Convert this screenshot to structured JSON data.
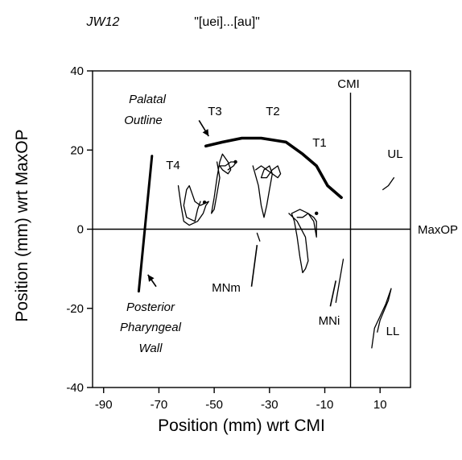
{
  "chart_data": {
    "type": "line",
    "header_left": "JW12",
    "header_right": "\"[uei]...[au]\"",
    "xlabel": "Position (mm) wrt CMI",
    "ylabel": "Position (mm) wrt MaxOP",
    "xlim": [
      -94,
      21
    ],
    "ylim": [
      -40,
      40
    ],
    "x_ticks": [
      "-90",
      "-70",
      "-50",
      "-30",
      "-10",
      "10"
    ],
    "x_tick_values": [
      -90,
      -70,
      -50,
      -30,
      -10,
      10
    ],
    "y_ticks": [
      "40",
      "20",
      "0",
      "-20",
      "-40"
    ],
    "y_tick_values": [
      40,
      20,
      0,
      -20,
      -40
    ],
    "reference_lines": {
      "vertical": {
        "label": "CMI",
        "x": 0
      },
      "horizontal": {
        "label": "MaxOP",
        "y": 0
      }
    },
    "labels": {
      "palatal": [
        "Palatal",
        "Outline"
      ],
      "pharyngeal": [
        "Posterior",
        "Pharyngeal",
        "Wall"
      ],
      "T4": "T4",
      "T3": "T3",
      "T2": "T2",
      "T1": "T1",
      "UL": "UL",
      "LL": "LL",
      "MNm": "MNm",
      "MNi": "MNi"
    },
    "series": [
      {
        "id": "palatal_outline",
        "points": [
          [
            -53,
            21
          ],
          [
            -47,
            22
          ],
          [
            -40,
            23
          ],
          [
            -33,
            23
          ],
          [
            -24,
            22
          ],
          [
            -18,
            19
          ],
          [
            -13,
            16
          ],
          [
            -9,
            11
          ],
          [
            -4,
            8
          ]
        ]
      },
      {
        "id": "pharyngeal_wall",
        "points": [
          [
            -72.5,
            18.5
          ],
          [
            -77.3,
            -15.7
          ]
        ]
      },
      {
        "id": "T4",
        "points": [
          [
            -63,
            11
          ],
          [
            -62,
            6
          ],
          [
            -61,
            2
          ],
          [
            -59,
            1
          ],
          [
            -56,
            2
          ],
          [
            -54,
            4
          ],
          [
            -53,
            6
          ],
          [
            -52,
            7
          ],
          [
            -55,
            6
          ],
          [
            -57,
            7
          ],
          [
            -58,
            9
          ],
          [
            -59,
            11
          ],
          [
            -60,
            10
          ],
          [
            -61,
            6
          ],
          [
            -60,
            3
          ],
          [
            -57,
            2
          ],
          [
            -56,
            5
          ],
          [
            -55,
            7
          ]
        ]
      },
      {
        "id": "T3",
        "points": [
          [
            -49,
            17
          ],
          [
            -48,
            13
          ],
          [
            -49,
            9
          ],
          [
            -50,
            5
          ],
          [
            -51,
            4
          ],
          [
            -50,
            8
          ],
          [
            -49,
            13
          ],
          [
            -48,
            17
          ],
          [
            -47,
            19
          ],
          [
            -45,
            17
          ],
          [
            -44,
            15
          ],
          [
            -45,
            14
          ],
          [
            -47,
            15
          ],
          [
            -48,
            16
          ],
          [
            -46,
            16
          ],
          [
            -44,
            17
          ],
          [
            -42,
            17
          ],
          [
            -43,
            16
          ],
          [
            -45,
            15
          ]
        ]
      },
      {
        "id": "T2",
        "points": [
          [
            -36,
            16
          ],
          [
            -34,
            11
          ],
          [
            -33,
            6
          ],
          [
            -32,
            3
          ],
          [
            -31,
            6
          ],
          [
            -30,
            10
          ],
          [
            -29,
            14
          ],
          [
            -30,
            16
          ],
          [
            -32,
            15
          ],
          [
            -33,
            13
          ],
          [
            -31,
            13
          ],
          [
            -29,
            15
          ],
          [
            -27,
            16
          ],
          [
            -26,
            14
          ],
          [
            -27,
            13
          ],
          [
            -29,
            14
          ],
          [
            -33,
            16
          ],
          [
            -35,
            15
          ]
        ]
      },
      {
        "id": "T1",
        "points": [
          [
            -23,
            4
          ],
          [
            -20,
            2
          ],
          [
            -17,
            -2
          ],
          [
            -16,
            -8
          ],
          [
            -17,
            -10
          ],
          [
            -18,
            -11
          ],
          [
            -19,
            -7
          ],
          [
            -20,
            -2
          ],
          [
            -21,
            2
          ],
          [
            -22,
            4
          ],
          [
            -19,
            5
          ],
          [
            -16,
            4
          ],
          [
            -14,
            3
          ],
          [
            -13,
            2
          ],
          [
            -13,
            -2
          ],
          [
            -14,
            2
          ],
          [
            -16,
            4
          ],
          [
            -18,
            3
          ],
          [
            -20,
            3
          ]
        ]
      },
      {
        "id": "MNm",
        "points": [
          [
            -34.5,
            -1
          ],
          [
            -33.5,
            -3
          ]
        ]
      },
      {
        "id": "MNi",
        "points": [
          [
            -3.3,
            -7.6
          ],
          [
            -6,
            -18.5
          ]
        ]
      },
      {
        "id": "UL",
        "points": [
          [
            11,
            10
          ],
          [
            13,
            11
          ],
          [
            15,
            13
          ]
        ]
      },
      {
        "id": "LL",
        "points": [
          [
            7,
            -30
          ],
          [
            8,
            -25
          ],
          [
            10,
            -22
          ],
          [
            12,
            -19
          ],
          [
            14,
            -15
          ],
          [
            13,
            -18
          ],
          [
            10,
            -23
          ],
          [
            9,
            -26
          ]
        ]
      }
    ],
    "arrows": [
      {
        "id": "palatal_arrow",
        "from": [
          -55.5,
          27.5
        ],
        "to": [
          -52,
          23.5
        ]
      },
      {
        "id": "pharyngeal_arrow",
        "from": [
          -71,
          -14.5
        ],
        "to": [
          -74,
          -11.5
        ]
      },
      {
        "id": "mnm_pointer",
        "from": [
          -36.5,
          -14.5
        ],
        "to": [
          -34.5,
          -4
        ]
      },
      {
        "id": "mni_pointer",
        "from": [
          -8,
          -19.5
        ],
        "to": [
          -6,
          -13
        ]
      }
    ],
    "grid": false
  }
}
